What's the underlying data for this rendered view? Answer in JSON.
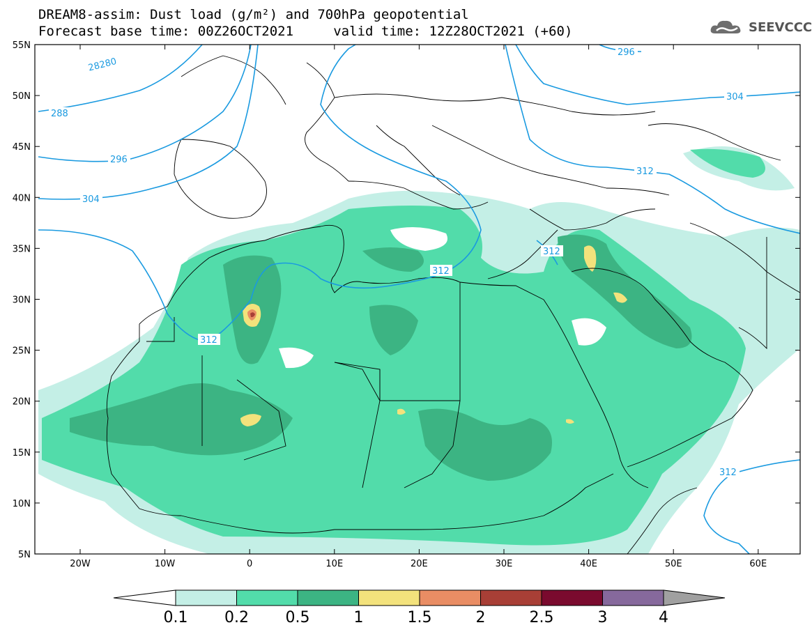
{
  "header": {
    "title_line1": "DREAM8-assim: Dust load (g/m²) and 700hPa geopotential",
    "title_line2": "Forecast base time: 00Z26OCT2021     valid time: 12Z28OCT2021 (+60)",
    "logo_text": "SEEVCCC",
    "logo_icon": "cloud-icon"
  },
  "axes": {
    "lat_labels": [
      "55N",
      "50N",
      "45N",
      "40N",
      "35N",
      "30N",
      "25N",
      "20N",
      "15N",
      "10N",
      "5N"
    ],
    "lon_labels": [
      "20W",
      "10W",
      "0",
      "10E",
      "20E",
      "30E",
      "40E",
      "50E",
      "60E"
    ]
  },
  "contour_labels": [
    "28280",
    "288",
    "296",
    "304",
    "296",
    "304",
    "312",
    "312",
    "312",
    "312",
    "312"
  ],
  "colorbar": {
    "tick_labels": [
      "0.1",
      "0.2",
      "0.5",
      "1",
      "1.5",
      "2",
      "2.5",
      "3",
      "4"
    ],
    "colors": [
      "#c4efe6",
      "#52dcaa",
      "#3cb483",
      "#f3e27c",
      "#e98d64",
      "#a83f36",
      "#7a0a2e",
      "#86699c"
    ],
    "under_color": "#ffffff",
    "over_color": "#a0a0a0"
  },
  "map_colors": {
    "contour": "#1a9ae0",
    "border": "#000000"
  }
}
